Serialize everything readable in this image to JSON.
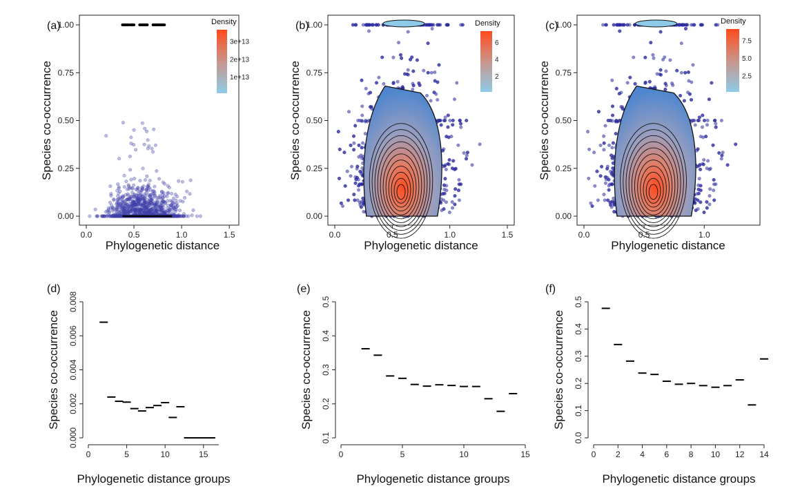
{
  "chart_data": [
    {
      "id": "a",
      "panel_label": "(a)",
      "type": "scatter",
      "xlabel": "Phylogenetic distance",
      "ylabel": "Species co-occurrence",
      "xlim": [
        0,
        1.6
      ],
      "ylim": [
        0,
        1
      ],
      "x_ticks": [
        "0.0",
        "0.5",
        "1.0",
        "1.5"
      ],
      "y_ticks": [
        "0.00",
        "0.25",
        "0.50",
        "0.75",
        "1.00"
      ],
      "legend": {
        "title": "Density",
        "labels": [
          "3e+13",
          "2e+13",
          "1e+13"
        ],
        "placement": "top-right"
      },
      "density_contours": false,
      "colors": {
        "point": "#3f3fa8",
        "high": "#ff4a1c",
        "low": "#8ecbe8"
      }
    },
    {
      "id": "b",
      "panel_label": "(b)",
      "type": "scatter",
      "xlabel": "Phylogenetic distance",
      "ylabel": "Species co-occurrence",
      "xlim": [
        0,
        1.5
      ],
      "ylim": [
        0,
        1
      ],
      "x_ticks": [
        "0.0",
        "0.5",
        "1.0",
        "1.5"
      ],
      "y_ticks": [
        "0.00",
        "0.25",
        "0.50",
        "0.75",
        "1.00"
      ],
      "legend": {
        "title": "Density",
        "labels": [
          "6",
          "4",
          "2"
        ],
        "placement": "top-right"
      },
      "density_contours": true,
      "colors": {
        "point": "#2b2b9e",
        "high": "#ff4a1c",
        "low": "#8ecbe8"
      }
    },
    {
      "id": "c",
      "panel_label": "(c)",
      "type": "scatter",
      "xlabel": "Phylogenetic distance",
      "ylabel": "Species co-occurrence",
      "xlim": [
        0,
        1.4
      ],
      "ylim": [
        0,
        1
      ],
      "x_ticks": [
        "0.0",
        "0.5",
        "1.0"
      ],
      "y_ticks": [
        "0.00",
        "0.25",
        "0.50",
        "0.75",
        "1.00"
      ],
      "legend": {
        "title": "Density",
        "labels": [
          "7.5",
          "5.0",
          "2.5"
        ],
        "placement": "top-right"
      },
      "density_contours": true,
      "colors": {
        "point": "#2b2b9e",
        "high": "#ff4a1c",
        "low": "#8ecbe8"
      }
    },
    {
      "id": "d",
      "panel_label": "(d)",
      "type": "scatter",
      "xlabel": "Phylogenetic distance groups",
      "ylabel": "Species co-occurrence",
      "xlim": [
        0,
        17
      ],
      "ylim": [
        0,
        0.008
      ],
      "x_ticks": [
        "0",
        "5",
        "10",
        "15"
      ],
      "y_ticks": [
        "0.000",
        "0.002",
        "0.004",
        "0.006",
        "0.008"
      ],
      "x": [
        2,
        3,
        4,
        5,
        6,
        7,
        8,
        9,
        10,
        11,
        12,
        13,
        14,
        15,
        16
      ],
      "y": [
        0.0068,
        0.0024,
        0.00215,
        0.0021,
        0.00172,
        0.00158,
        0.00178,
        0.0019,
        0.00207,
        0.0012,
        0.00183,
        0,
        0,
        0,
        0
      ]
    },
    {
      "id": "e",
      "panel_label": "(e)",
      "type": "scatter",
      "xlabel": "Phylogenetic distance groups",
      "ylabel": "Species co-occurrence",
      "xlim": [
        0,
        15
      ],
      "ylim": [
        0.1,
        0.5
      ],
      "x_ticks": [
        "0",
        "5",
        "10",
        "15"
      ],
      "y_ticks": [
        "0.1",
        "0.2",
        "0.3",
        "0.4",
        "0.5"
      ],
      "x": [
        2,
        3,
        4,
        5,
        6,
        7,
        8,
        9,
        10,
        11,
        12,
        13,
        14
      ],
      "y": [
        0.362,
        0.343,
        0.282,
        0.275,
        0.257,
        0.252,
        0.256,
        0.254,
        0.251,
        0.251,
        0.215,
        0.178,
        0.23
      ]
    },
    {
      "id": "f",
      "panel_label": "(f)",
      "type": "scatter",
      "xlabel": "Phylogenetic distance groups",
      "ylabel": "Species co-occurrence",
      "xlim": [
        0,
        14
      ],
      "ylim": [
        0,
        0.5
      ],
      "x_ticks": [
        "0",
        "2",
        "4",
        "6",
        "8",
        "10",
        "12",
        "14"
      ],
      "y_ticks": [
        "0.0",
        "0.1",
        "0.2",
        "0.3",
        "0.4",
        "0.5"
      ],
      "x": [
        1,
        2,
        3,
        4,
        5,
        6,
        7,
        8,
        9,
        10,
        11,
        12,
        13,
        14
      ],
      "y": [
        0.476,
        0.343,
        0.282,
        0.238,
        0.233,
        0.208,
        0.197,
        0.2,
        0.192,
        0.186,
        0.192,
        0.213,
        0.121,
        0.29
      ]
    }
  ]
}
